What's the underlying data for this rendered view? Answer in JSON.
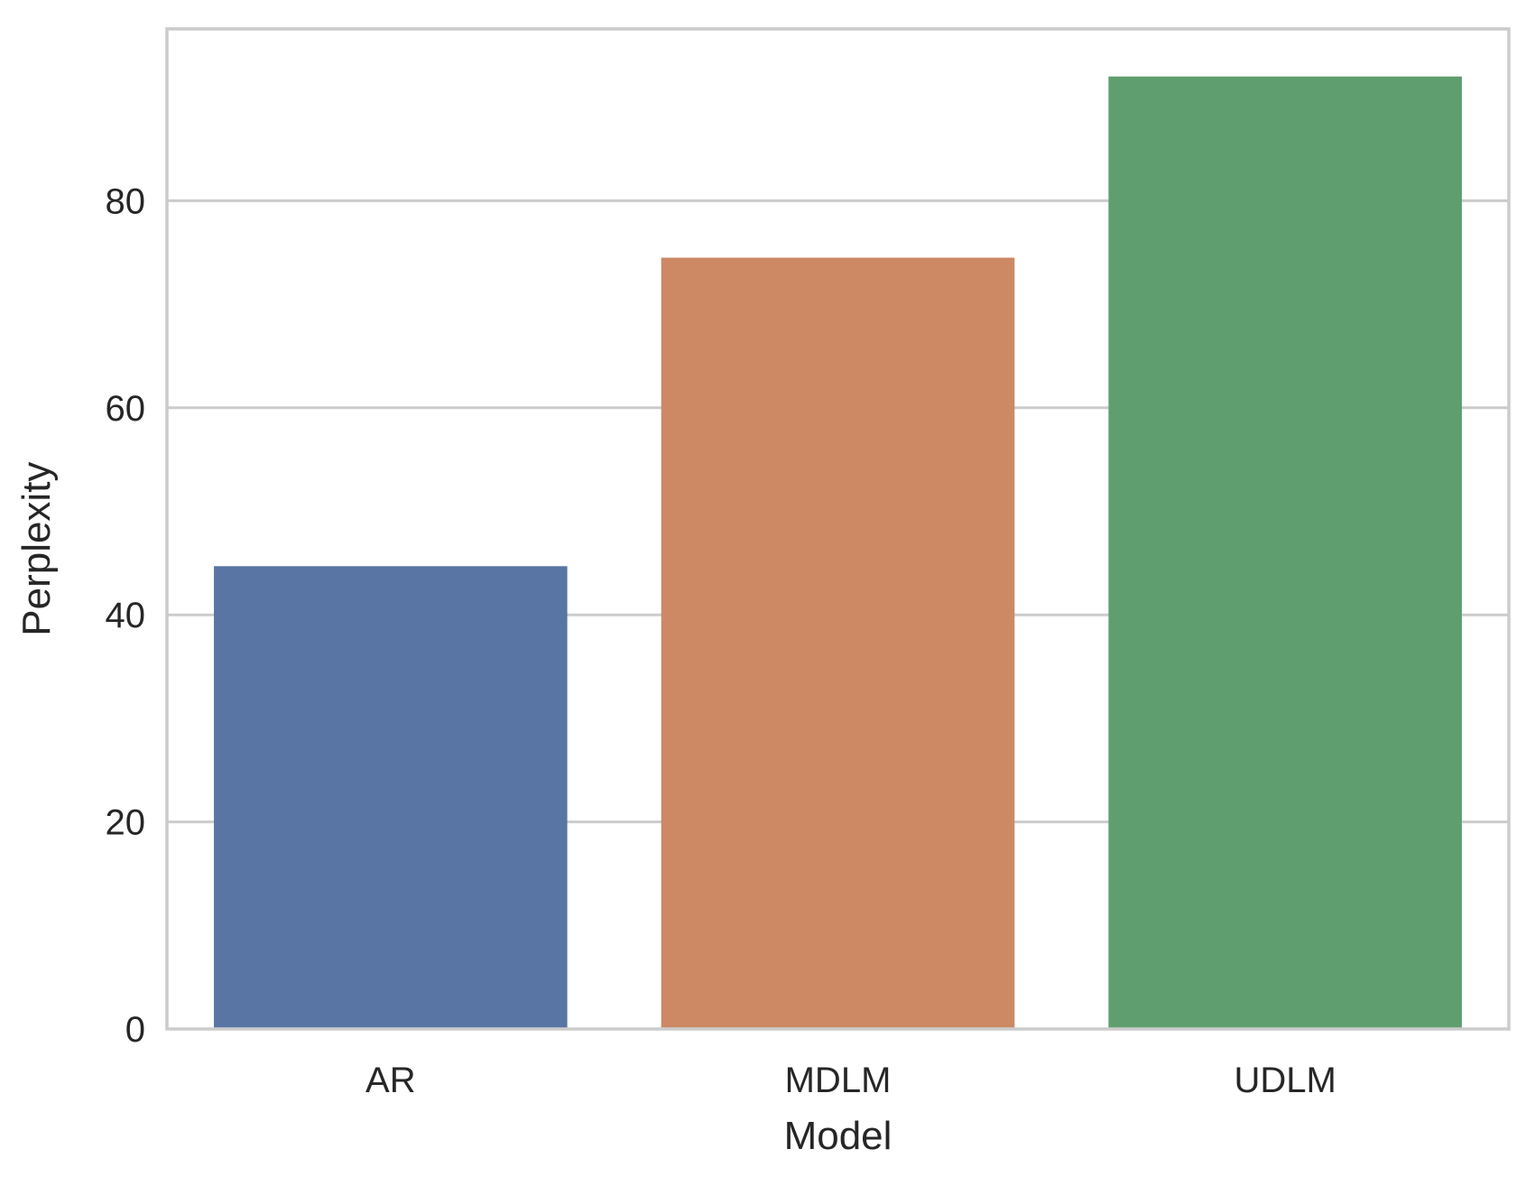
{
  "chart_data": {
    "type": "bar",
    "categories": [
      "AR",
      "MDLM",
      "UDLM"
    ],
    "values": [
      44.7,
      74.5,
      92
    ],
    "colors": [
      "#5875a4",
      "#cc8963",
      "#5f9e6e"
    ],
    "xlabel": "Model",
    "ylabel": "Perplexity",
    "ylim": [
      0,
      96.6
    ],
    "yticks": [
      0,
      20,
      40,
      60,
      80
    ],
    "grid": "horizontal",
    "grid_color": "#cccccc",
    "background": "#ffffff",
    "legend": "none"
  }
}
